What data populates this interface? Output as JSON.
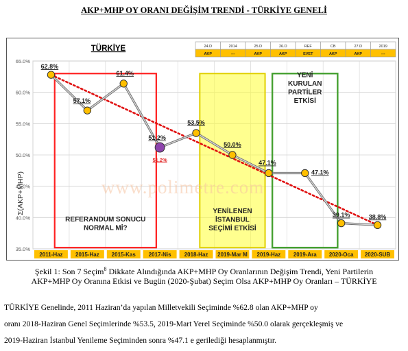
{
  "page_title": "AKP+MHP OY ORANI DEĞİŞİM TRENDİ - TÜRKİYE GENELİ",
  "chart_title": "TÜRKİYE",
  "ylabel": "Σ(AKP+MHP)",
  "watermark": "www.polimetre.com",
  "colors": {
    "line": "#8f8f8f",
    "marker": "#ffbf00",
    "marker_special": "#8e44ad",
    "trend": "#e01010",
    "label_tag": "#ffc000",
    "box_red": "#ff2020",
    "box_yellow": "#ffff33",
    "box_green": "#44a030",
    "xtick_bg": "#ffc000"
  },
  "chart_data": {
    "type": "line",
    "categories": [
      "2011-Haz",
      "2015-Haz",
      "2015-Kas",
      "2017-Nis",
      "2018-Haz",
      "2019-Mar M",
      "2019-Haz",
      "2019-Ara",
      "2020-Oca",
      "2020-SUB"
    ],
    "values": [
      62.8,
      57.1,
      61.4,
      51.2,
      53.5,
      50.0,
      47.1,
      47.1,
      39.1,
      38.8
    ],
    "point_labels": [
      "62.8%",
      "57.1%",
      "61.4%",
      "51.2%",
      "53.5%",
      "50.0%",
      "47.1%",
      "47.1%",
      "39.1%",
      "38.8%"
    ],
    "extra_label": "51.2%",
    "ylim": [
      35,
      65
    ],
    "yticks": [
      "35.0%",
      "40.0%",
      "45.0%",
      "50.0%",
      "55.0%",
      "60.0%",
      "65.0%"
    ],
    "trend": {
      "from": 62.8,
      "to": 38.8
    },
    "grid": true,
    "boxes": [
      {
        "label_line1": "REFERANDUM SONUCU",
        "label_line2": "NORMAL Mİ?",
        "style": "red"
      },
      {
        "label_line1": "YENİLENEN",
        "label_line2": "İSTANBUL",
        "label_line3": "SEÇİMİ ETKİSİ",
        "style": "yellow"
      },
      {
        "label_line1": "YENİ",
        "label_line2": "KURULAN",
        "label_line3": "PARTİLER",
        "label_line4": "ETKİSİ",
        "style": "green"
      }
    ],
    "header_table": {
      "top": [
        "24.D",
        "2014",
        "25.D",
        "26.D",
        "REF",
        "CB",
        "27.D",
        "2019"
      ],
      "bottom": [
        "AKP",
        "---",
        "AKP",
        "AKP",
        "EVET",
        "AKP",
        "AKP",
        "---"
      ]
    }
  },
  "caption_line1": "Şekil 1: Son 7 Seçim",
  "caption_sup": "8",
  "caption_line1_rest": " Dikkate Alındığında AKP+MHP Oy Oranlarının Değişim Trendi, Yeni Partilerin",
  "caption_line2": "AKP+MHP Oy Oranına Etkisi ve Bugün (2020-Şubat) Seçim Olsa AKP+MHP Oy Oranları – TÜRKİYE",
  "paragraph": [
    " TÜRKİYE Genelinde, 2011 Haziran’da yapılan Milletvekili Seçiminde %62.8 olan AKP+MHP oy",
    "oranı 2018-Haziran Genel Seçimlerinde %53.5, 2019-Mart Yerel Seçiminde %50.0 olarak gerçekleşmiş ve",
    "2019-Haziran İstanbul Yenileme Seçiminden sonra %47.1 e gerilediği hesaplanmıştır."
  ]
}
